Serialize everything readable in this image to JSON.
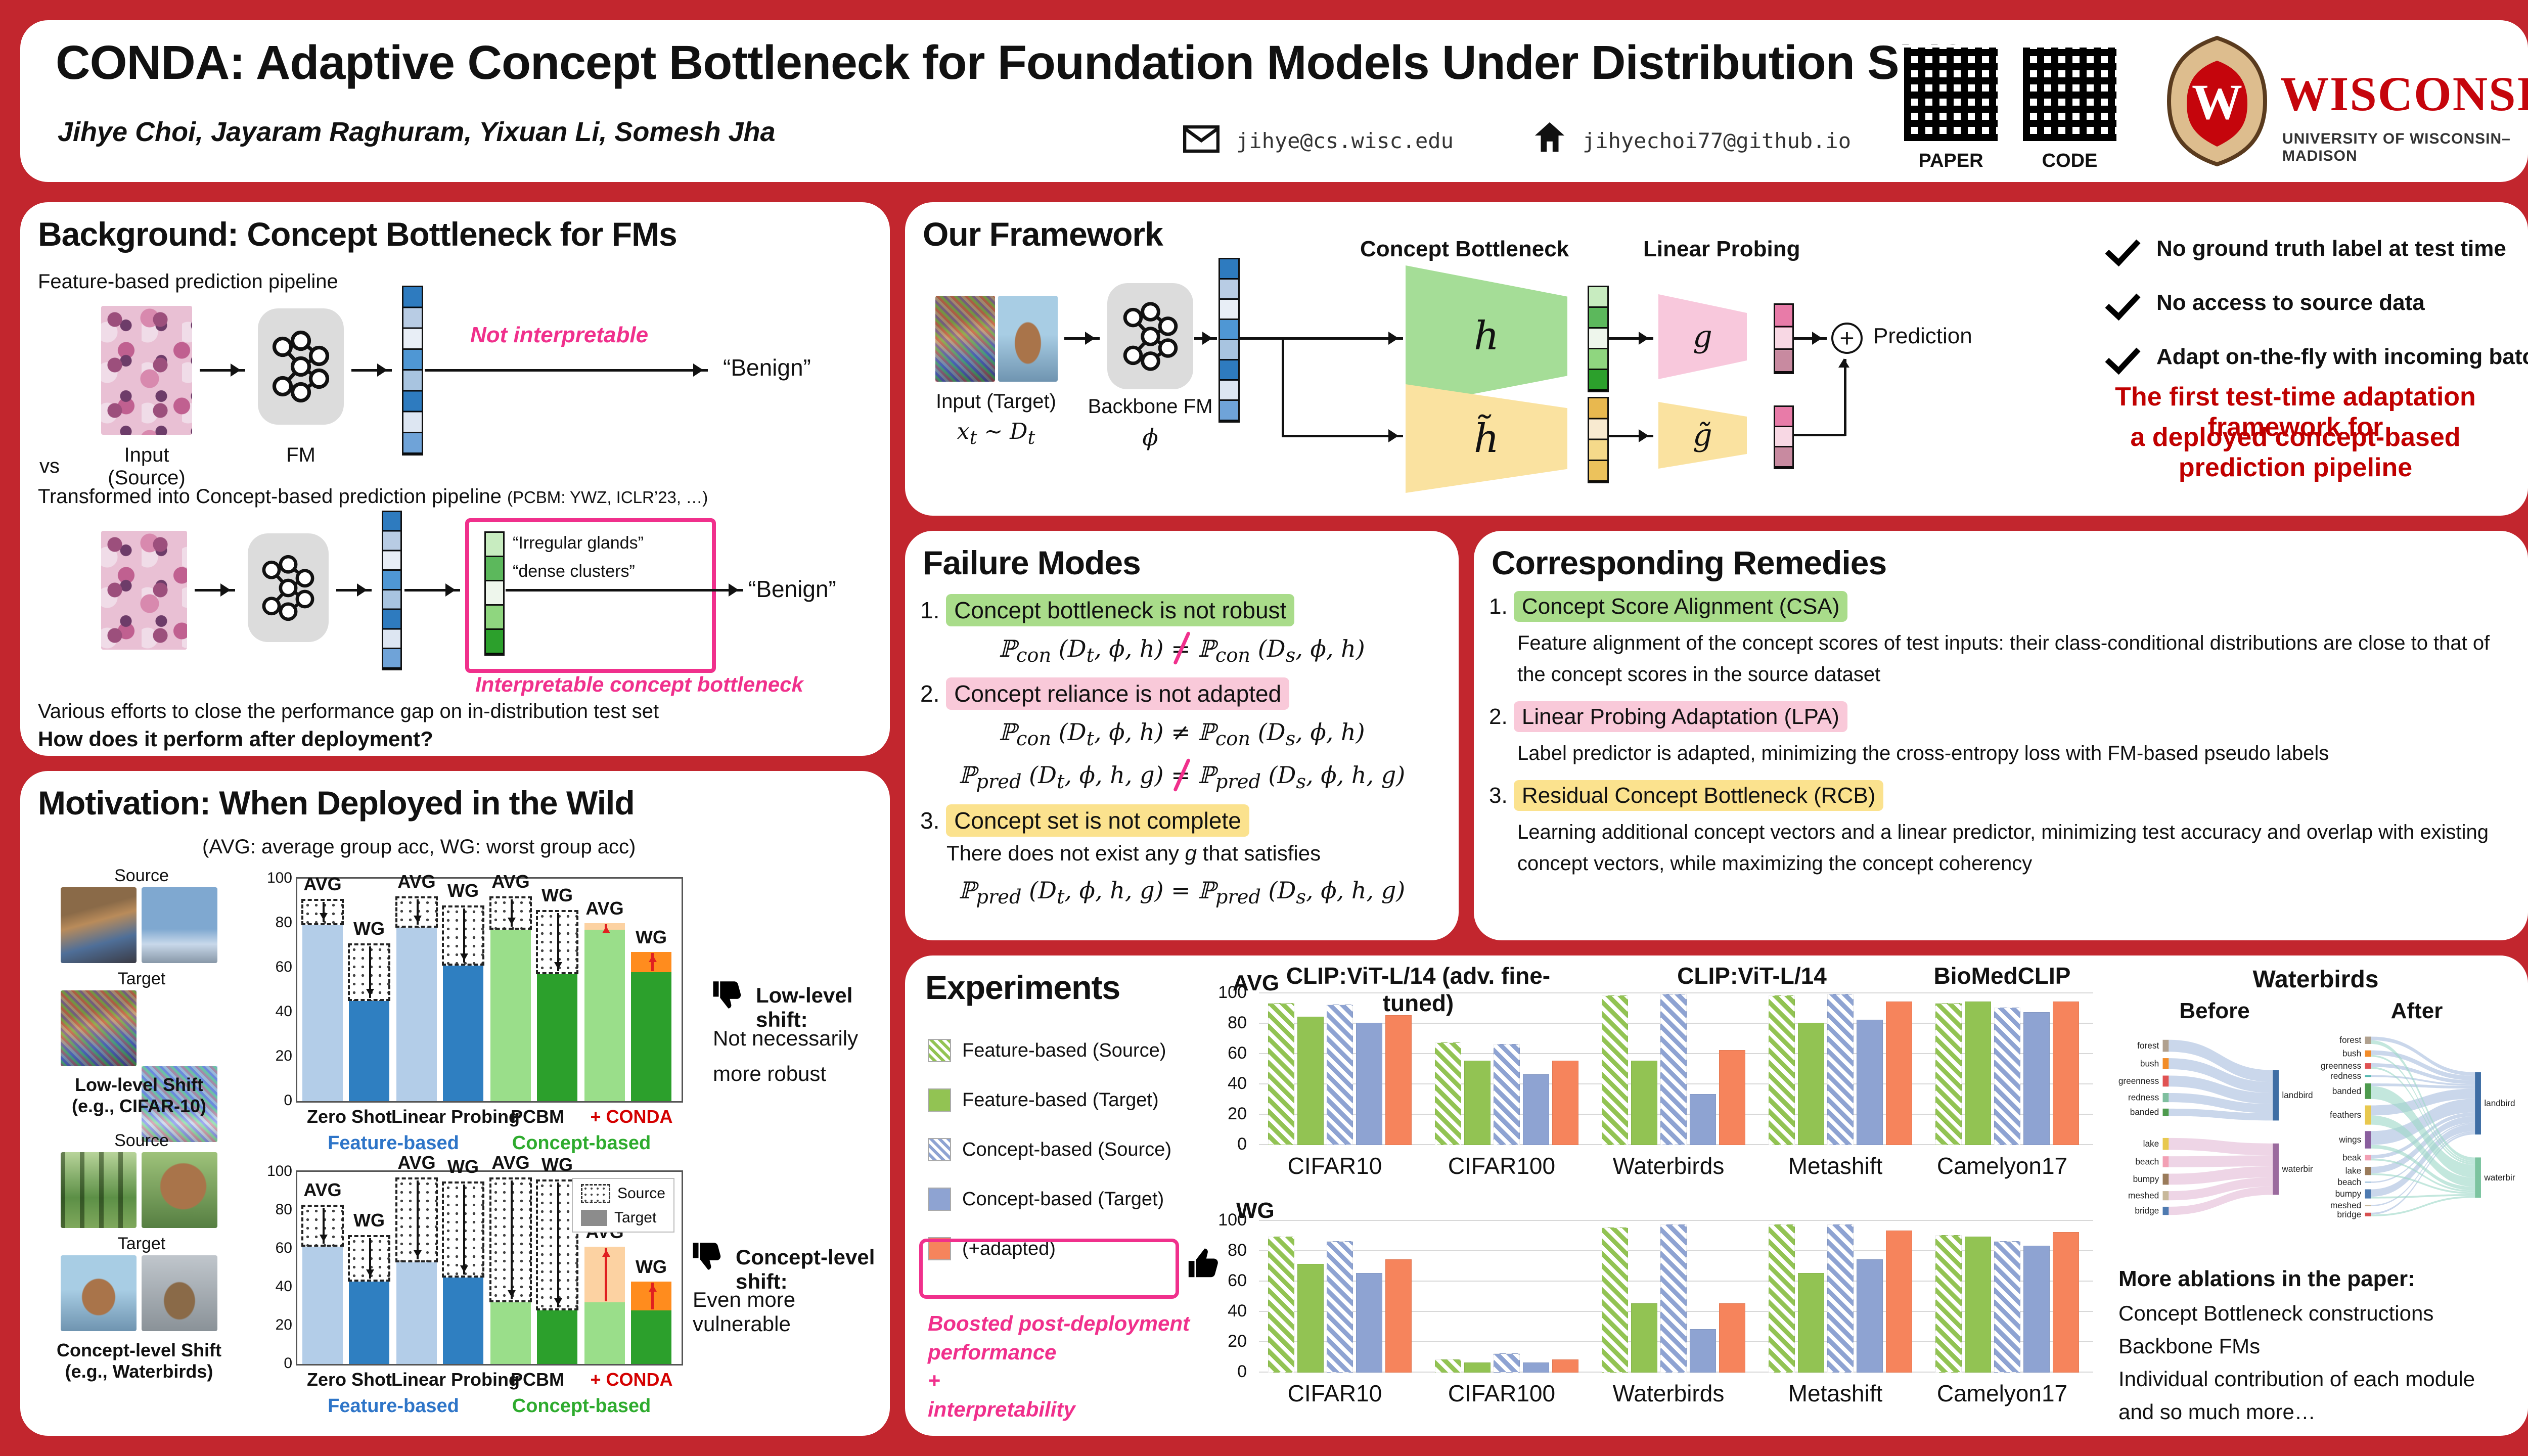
{
  "colors": {
    "page_red": "#c2262e",
    "brand_red": "#c5050c",
    "accent_pink": "#f0308c",
    "tagline_red": "#c00000",
    "feature_blue_light": "#b3cde8",
    "feature_blue_dark": "#2f7fc1",
    "concept_green_light": "#9ade8a",
    "concept_green_dark": "#2ca02c",
    "conda_orange_light": "#fcd2a2",
    "conda_orange_dark": "#ff8c1e",
    "exp_green": "#92c353",
    "exp_blue": "#8ea3d2",
    "exp_orange": "#f6845c",
    "hl_green": "#a9dc8a",
    "hl_pink": "#f9c9d9",
    "hl_yellow": "#fbe28e"
  },
  "header": {
    "title": "CONDA: Adaptive Concept Bottleneck for Foundation Models Under Distribution Shifts",
    "authors": "Jihye Choi, Jayaram Raghuram, Yixuan Li, Somesh Jha",
    "email": "jihye@cs.wisc.edu",
    "website": "jihyechoi77@github.io",
    "qr": [
      {
        "label": "PAPER"
      },
      {
        "label": "CODE"
      }
    ],
    "logo": {
      "wordmark": "WISCONSIN",
      "sub": "UNIVERSITY OF WISCONSIN–MADISON",
      "crest_letter": "W"
    }
  },
  "background": {
    "heading": "Background: Concept Bottleneck for FMs",
    "pipeline1_label": "Feature-based prediction pipeline",
    "not_interpretable": "Not interpretable",
    "benign1": "“Benign”",
    "benign2": "“Benign”",
    "input_source": "Input (Source)",
    "fm": "FM",
    "vs": "vs",
    "pipeline2_label": "Transformed into Concept-based prediction pipeline",
    "pipeline2_cite": "(PCBM: YWZ, ICLR’23, …)",
    "concept1": "“Irregular glands”",
    "concept2": "“dense clusters”",
    "interpretable": "Interpretable concept bottleneck",
    "closing1": "Various efforts to close the performance gap on in-distribution test set",
    "closing2": "How does it perform after deployment?"
  },
  "motivation": {
    "heading": "Motivation: When Deployed in the Wild",
    "subtitle": "(AVG: average group acc, WG: worst group acc)",
    "group1": {
      "source": "Source",
      "target": "Target",
      "caption1": "Low-level Shift",
      "caption2": "(e.g., CIFAR-10)"
    },
    "group2": {
      "source": "Source",
      "target": "Target",
      "caption1": "Concept-level Shift",
      "caption2": "(e.g., Waterbirds)"
    },
    "note1_title": "Low-level shift:",
    "note1_line1": "Not necessarily",
    "note1_line2": "more robust",
    "note2_title": "Concept-level shift:",
    "note2_line1": "Even more vulnerable"
  },
  "framework": {
    "heading": "Our Framework",
    "cb_label": "Concept Bottleneck",
    "lp_label": "Linear Probing",
    "input_caption": "Input (Target)",
    "input_math": "x<sub>t</sub> ∼ D<sub>t</sub>",
    "backbone_caption": "Backbone FM",
    "phi": "ϕ",
    "h": "h",
    "g": "g",
    "h_tilde": "h̃",
    "g_tilde": "g̃",
    "plus": "+",
    "prediction": "Prediction",
    "checks": [
      "No ground truth label at test time",
      "No access to source data",
      "Adapt on-the-fly with incoming batch"
    ],
    "tagline1": "The first test-time adaptation framework for",
    "tagline2": "a deployed concept-based prediction pipeline"
  },
  "failure": {
    "heading": "Failure Modes",
    "items": [
      {
        "num": "1.",
        "title": "Concept bottleneck is not robust",
        "hl": "green",
        "formulas": [
          "ℙ<sub>con</sub> (D<sub>t</sub>, ϕ, h) <span class='ps'>=</span> ℙ<sub>con</sub> (D<sub>s</sub>, ϕ, h)"
        ]
      },
      {
        "num": "2.",
        "title": "Concept reliance is not adapted",
        "hl": "pink",
        "formulas": [
          "ℙ<sub>con</sub> (D<sub>t</sub>, ϕ, h) ≠ ℙ<sub>con</sub> (D<sub>s</sub>, ϕ, h)",
          "ℙ<sub>pred</sub> (D<sub>t</sub>, ϕ, h, g) <span class='ps'>=</span> ℙ<sub>pred</sub> (D<sub>s</sub>, ϕ, h, g)"
        ]
      },
      {
        "num": "3.",
        "title": "Concept set is not complete",
        "hl": "yellow",
        "note": "There does not exist any <i>g</i> that satisfies",
        "formulas": [
          "ℙ<sub>pred</sub> (D<sub>t</sub>, ϕ, h, g) = ℙ<sub>pred</sub> (D<sub>s</sub>, ϕ, h, g)"
        ]
      }
    ]
  },
  "remedies": {
    "heading": "Corresponding Remedies",
    "items": [
      {
        "num": "1.",
        "title": "Concept Score Alignment (CSA)",
        "hl": "green",
        "desc": "Feature alignment of the concept scores of test inputs: their class-conditional distributions are close to that of the concept scores in the source dataset"
      },
      {
        "num": "2.",
        "title": "Linear Probing Adaptation (LPA)",
        "hl": "pink",
        "desc": "Label predictor is adapted, minimizing the cross-entropy loss with FM-based pseudo labels"
      },
      {
        "num": "3.",
        "title": "Residual Concept Bottleneck (RCB)",
        "hl": "yellow",
        "desc": "Learning additional concept vectors and a linear predictor, minimizing test accuracy and overlap with existing concept vectors, while maximizing the concept coherency"
      }
    ]
  },
  "experiments": {
    "heading": "Experiments",
    "legend": [
      {
        "label": "Feature-based (Source)",
        "style": "hatch-green"
      },
      {
        "label": "Feature-based (Target)",
        "style": "solid-green"
      },
      {
        "label": "Concept-based (Source)",
        "style": "hatch-blue"
      },
      {
        "label": "Concept-based (Target)",
        "style": "solid-blue"
      },
      {
        "label": "(+adapted)",
        "style": "solid-orange",
        "boxed": true
      }
    ],
    "note_lines": [
      "Boosted post-deployment",
      "performance",
      "+",
      "interpretability"
    ],
    "waterbirds_title": "Waterbirds",
    "before_label": "Before",
    "after_label": "After",
    "more_heading": "More ablations in the paper:",
    "more_lines": [
      "Concept Bottleneck constructions",
      "Backbone FMs",
      "Individual contribution of each module",
      "and so much more…"
    ]
  },
  "chart_data": [
    {
      "id": "motivation_low_level",
      "type": "bar",
      "title": "Low-level Shift (e.g., CIFAR-10)",
      "ylim": [
        0,
        100
      ],
      "yticks": [
        0,
        20,
        40,
        60,
        80,
        100
      ],
      "bar_labels": {
        "avg": "AVG",
        "wg": "WG"
      },
      "categories": [
        "Zero Shot",
        "Linear Probing",
        "PCBM",
        "+ CONDA"
      ],
      "family": [
        "feature",
        "feature",
        "concept",
        "conda"
      ],
      "bars": [
        {
          "avg": {
            "t": 79,
            "s": 91
          },
          "wg": {
            "t": 45,
            "s": 71
          }
        },
        {
          "avg": {
            "t": 78,
            "s": 92
          },
          "wg": {
            "t": 61,
            "s": 88
          }
        },
        {
          "avg": {
            "t": 77,
            "s": 92
          },
          "wg": {
            "t": 57,
            "s": 86
          }
        },
        {
          "avg": {
            "t": 77,
            "a": 80
          },
          "wg": {
            "t": 58,
            "a": 67
          }
        }
      ],
      "group_axis_labels": [
        {
          "label": "Feature-based",
          "color": "#2e75c8"
        },
        {
          "label": "Concept-based",
          "color": "#2eab2e"
        }
      ]
    },
    {
      "id": "motivation_concept_level",
      "type": "bar",
      "title": "Concept-level Shift (e.g., Waterbirds)",
      "ylim": [
        0,
        100
      ],
      "yticks": [
        0,
        20,
        40,
        60,
        80,
        100
      ],
      "bar_labels": {
        "avg": "AVG",
        "wg": "WG"
      },
      "categories": [
        "Zero Shot",
        "Linear Probing",
        "PCBM",
        "+ CONDA"
      ],
      "family": [
        "feature",
        "feature",
        "concept",
        "conda"
      ],
      "bars": [
        {
          "avg": {
            "t": 61,
            "s": 83
          },
          "wg": {
            "t": 43,
            "s": 67
          }
        },
        {
          "avg": {
            "t": 53,
            "s": 97
          },
          "wg": {
            "t": 45,
            "s": 95
          }
        },
        {
          "avg": {
            "t": 32,
            "s": 97
          },
          "wg": {
            "t": 28,
            "s": 96
          }
        },
        {
          "avg": {
            "t": 32,
            "a": 61
          },
          "wg": {
            "t": 28,
            "a": 43
          }
        }
      ],
      "legend": {
        "source": "Source",
        "target": "Target"
      },
      "group_axis_labels": [
        {
          "label": "Feature-based",
          "color": "#2e75c8"
        },
        {
          "label": "Concept-based",
          "color": "#2eab2e"
        }
      ]
    },
    {
      "id": "experiments_avg",
      "type": "bar",
      "row_label": "AVG",
      "ylim": [
        0,
        100
      ],
      "yticks": [
        0,
        20,
        40,
        60,
        80,
        100
      ],
      "backbone_titles": [
        {
          "label": "CLIP:ViT-L/14 (adv. fine-tuned)",
          "from": 0,
          "to": 1
        },
        {
          "label": "CLIP:ViT-L/14",
          "from": 2,
          "to": 3
        },
        {
          "label": "BioMedCLIP",
          "from": 4,
          "to": 4
        }
      ],
      "categories": [
        "CIFAR10",
        "CIFAR100",
        "Waterbirds",
        "Metashift",
        "Camelyon17"
      ],
      "series": [
        {
          "name": "Feature-based (Source)",
          "style": "bar-hatch-green",
          "values": [
            93,
            67,
            98,
            98,
            93
          ]
        },
        {
          "name": "Feature-based (Target)",
          "style": "solid-green",
          "values": [
            84,
            55,
            55,
            80,
            94
          ]
        },
        {
          "name": "Concept-based (Source)",
          "style": "bar-hatch-blue",
          "values": [
            92,
            66,
            99,
            99,
            90
          ]
        },
        {
          "name": "Concept-based (Target)",
          "style": "solid-blue",
          "values": [
            80,
            46,
            33,
            82,
            87
          ]
        },
        {
          "name": "(+adapted)",
          "style": "solid-orange",
          "values": [
            85,
            55,
            62,
            94,
            94
          ]
        }
      ]
    },
    {
      "id": "experiments_wg",
      "type": "bar",
      "row_label": "WG",
      "ylim": [
        0,
        100
      ],
      "yticks": [
        0,
        20,
        40,
        60,
        80,
        100
      ],
      "categories": [
        "CIFAR10",
        "CIFAR100",
        "Waterbirds",
        "Metashift",
        "Camelyon17"
      ],
      "series": [
        {
          "name": "Feature-based (Source)",
          "style": "bar-hatch-green",
          "values": [
            89,
            8,
            95,
            97,
            90
          ]
        },
        {
          "name": "Feature-based (Target)",
          "style": "solid-green",
          "values": [
            71,
            6,
            45,
            65,
            89
          ]
        },
        {
          "name": "Concept-based (Source)",
          "style": "bar-hatch-blue",
          "values": [
            86,
            12,
            97,
            97,
            86
          ]
        },
        {
          "name": "Concept-based (Target)",
          "style": "solid-blue",
          "values": [
            65,
            6,
            28,
            74,
            83
          ]
        },
        {
          "name": "(+adapted)",
          "style": "solid-orange",
          "values": [
            74,
            8,
            45,
            93,
            92
          ]
        }
      ]
    },
    {
      "id": "sankey_before",
      "type": "sankey",
      "title": "Before",
      "flow_colors": {
        "blue": "#a9bede",
        "pink": "#e3bcd6",
        "teal": "#9ed8c8"
      },
      "right": [
        {
          "label": "landbird",
          "color": "#3f6ea5"
        },
        {
          "label": "waterbird",
          "color": "#9b6b9e"
        }
      ],
      "nodes": [
        {
          "label": "forest",
          "color": "#b0a08e",
          "flows": [
            [
              "landbird",
              26,
              "blue"
            ]
          ]
        },
        {
          "label": "bush",
          "color": "#f28c28",
          "flows": [
            [
              "landbird",
              24,
              "blue"
            ]
          ]
        },
        {
          "label": "greenness",
          "color": "#e05252",
          "flows": [
            [
              "landbird",
              24,
              "blue"
            ]
          ]
        },
        {
          "label": "redness",
          "color": "#7fbf9f",
          "flows": [
            [
              "landbird",
              20,
              "blue"
            ]
          ]
        },
        {
          "label": "banded",
          "color": "#4e9a4e",
          "flows": [
            [
              "landbird",
              16,
              "blue"
            ]
          ],
          "gap_after": 34
        },
        {
          "label": "lake",
          "color": "#e8c84f",
          "flows": [
            [
              "waterbird",
              26,
              "pink"
            ]
          ]
        },
        {
          "label": "beach",
          "color": "#f2a0b4",
          "flows": [
            [
              "waterbird",
              24,
              "pink"
            ]
          ]
        },
        {
          "label": "bumpy",
          "color": "#9a7b5a",
          "flows": [
            [
              "waterbird",
              24,
              "pink"
            ]
          ]
        },
        {
          "label": "meshed",
          "color": "#c8b89a",
          "flows": [
            [
              "waterbird",
              20,
              "pink"
            ]
          ]
        },
        {
          "label": "bridge",
          "color": "#4e7ab0",
          "flows": [
            [
              "waterbird",
              18,
              "pink"
            ]
          ]
        }
      ]
    },
    {
      "id": "sankey_after",
      "type": "sankey",
      "title": "After",
      "flow_colors": {
        "blue": "#a9bede",
        "pink": "#e3bcd6",
        "teal": "#9ed8c8"
      },
      "right": [
        {
          "label": "landbird",
          "color": "#3f6ea5"
        },
        {
          "label": "waterbird",
          "color": "#7cc4a0"
        }
      ],
      "nodes": [
        {
          "label": "forest",
          "color": "#b0a08e",
          "flows": [
            [
              "landbird",
              8,
              "blue"
            ],
            [
              "waterbird",
              8,
              "teal"
            ]
          ]
        },
        {
          "label": "bush",
          "color": "#f28c28",
          "flows": [
            [
              "landbird",
              10,
              "blue"
            ],
            [
              "waterbird",
              4,
              "teal"
            ]
          ]
        },
        {
          "label": "greenness",
          "color": "#e05252",
          "flows": [
            [
              "landbird",
              8,
              "blue"
            ],
            [
              "waterbird",
              4,
              "teal"
            ]
          ]
        },
        {
          "label": "redness",
          "color": "#55b8b0",
          "flows": [
            [
              "landbird",
              4,
              "blue"
            ]
          ]
        },
        {
          "label": "banded",
          "color": "#4e9a4e",
          "flows": [
            [
              "landbird",
              6,
              "blue"
            ],
            [
              "waterbird",
              28,
              "teal"
            ]
          ]
        },
        {
          "label": "feathers",
          "color": "#e8c84f",
          "flows": [
            [
              "landbird",
              22,
              "blue"
            ],
            [
              "waterbird",
              20,
              "teal"
            ]
          ]
        },
        {
          "label": "wings",
          "color": "#8a5f9e",
          "flows": [
            [
              "landbird",
              30,
              "blue"
            ],
            [
              "waterbird",
              8,
              "teal"
            ]
          ]
        },
        {
          "label": "beak",
          "color": "#f2a0b4",
          "flows": [
            [
              "landbird",
              8,
              "blue"
            ],
            [
              "waterbird",
              4,
              "teal"
            ]
          ]
        },
        {
          "label": "lake",
          "color": "#9a7b5a",
          "flows": [
            [
              "landbird",
              14,
              "blue"
            ],
            [
              "waterbird",
              4,
              "teal"
            ]
          ]
        },
        {
          "label": "beach",
          "color": "#a8c8e0",
          "flows": [
            [
              "landbird",
              3,
              "blue"
            ]
          ]
        },
        {
          "label": "bumpy",
          "color": "#4e7ab0",
          "flows": [
            [
              "landbird",
              16,
              "blue"
            ],
            [
              "waterbird",
              4,
              "teal"
            ]
          ]
        },
        {
          "label": "meshed",
          "color": "#c8b89a",
          "flows": [
            [
              "landbird",
              3,
              "blue"
            ]
          ]
        },
        {
          "label": "bridge",
          "color": "#d85050",
          "flows": [
            [
              "landbird",
              4,
              "blue"
            ],
            [
              "waterbird",
              4,
              "teal"
            ]
          ]
        }
      ]
    }
  ]
}
